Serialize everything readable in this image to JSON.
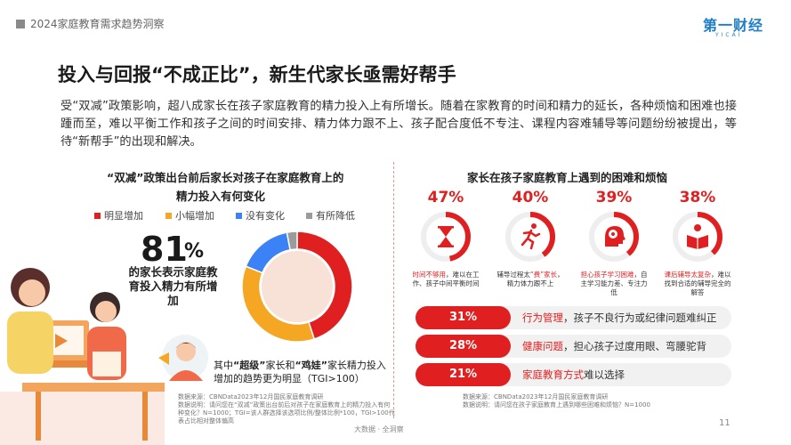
{
  "header": {
    "section_label": "2024家庭教育需求趋势洞察",
    "logo_text": "第一财经",
    "logo_sub": "YICAI"
  },
  "page_title": "投入与回报“不成正比”，新生代家长亟需好帮手",
  "intro": "受“双减”政策影响，超八成家长在孩子家庭教育的精力投入上有所增长。随着在家教育的时间和精力的延长，各种烦恼和困难也接踵而至，难以平衡工作和孩子之间的时间安排、精力体力跟不上、孩子配合度低不专注、课程内容难辅导等问题纷纷被提出，等待“新帮手”的出现和解决。",
  "left_chart": {
    "title_line1": "“双减”政策出台前后家长对孩子在家庭教育上的",
    "title_line2": "精力投入有何变化",
    "legend": [
      {
        "label": "明显增加",
        "color": "#e02020"
      },
      {
        "label": "小幅增加",
        "color": "#f5a623"
      },
      {
        "label": "没有变化",
        "color": "#3b82f6"
      },
      {
        "label": "有所降低",
        "color": "#9b9b9b"
      }
    ],
    "big_number": "81",
    "big_number_unit": "%",
    "big_label": "的家长表示家庭教育投入精力有所增加",
    "note_prefix": "其中",
    "note_kw1": "“超级”",
    "note_mid1": "家长和",
    "note_kw2": "“鸡娃”",
    "note_mid2": "家长精力投入增加的趋势更为明显（TGI>100）",
    "source": "数据来源：CBNData2023年12月国民家庭教育调研\n数据说明：请问您在“双减”政策出台前后对孩子在家庭教育上的精力投入有何种变化？N=1000；TGI=该人群选择该选项比例/整体比例*100，TGI>100代表占比相对整体偏高"
  },
  "chart_data": {
    "type": "pie",
    "title": "“双减”政策出台前后家长对孩子在家庭教育上的精力投入有何变化",
    "categories": [
      "明显增加",
      "小幅增加",
      "没有变化",
      "有所降低"
    ],
    "values": [
      45,
      36,
      16,
      3
    ],
    "colors": [
      "#e02020",
      "#f5a623",
      "#3b82f6",
      "#9b9b9b"
    ],
    "center_fill": "#f8e1d7"
  },
  "right_chart": {
    "title": "家长在孩子家庭教育上遇到的困难和烦恼",
    "items": [
      {
        "pct": "47%",
        "value": 47,
        "icon": "hourglass-icon",
        "cap_red": "时间不够用",
        "cap_rest": "，难以在工作、孩子中间平衡时间"
      },
      {
        "pct": "40%",
        "value": 40,
        "icon": "running-person-icon",
        "cap_pre": "辅导过程太",
        "cap_red": "“费”家长",
        "cap_rest": "，精力体力跟不上"
      },
      {
        "pct": "39%",
        "value": 39,
        "icon": "brain-head-icon",
        "cap_red": "担心孩子学习困难",
        "cap_rest": "，自主学习能力差、专注力低"
      },
      {
        "pct": "38%",
        "value": 38,
        "icon": "reading-person-icon",
        "cap_red": "课后辅导太复杂",
        "cap_rest": "，难以找到合适的辅导完全的解答"
      }
    ],
    "bars": [
      {
        "pct": "31%",
        "value": 31,
        "kw": "行为管理",
        "rest": "，孩子不良行为或纪律问题难纠正"
      },
      {
        "pct": "28%",
        "value": 28,
        "kw": "健康问题",
        "rest": "，担心孩子过度用眼、弯腰驼背"
      },
      {
        "pct": "21%",
        "value": 21,
        "kw": "家庭教育方式",
        "rest": "难以选择"
      }
    ],
    "source": "数据来源：CBNData2023年12月国民家庭教育调研\n数据说明：请问您在孩子家庭教育上遇到哪些困难和烦恼？N=1000"
  },
  "footer": {
    "brand": "大数据 · 全洞察",
    "page_number": "11"
  },
  "colors": {
    "accent": "#e02020",
    "ring_bg": "#eeeeee",
    "logo": "#1f7ec8"
  }
}
